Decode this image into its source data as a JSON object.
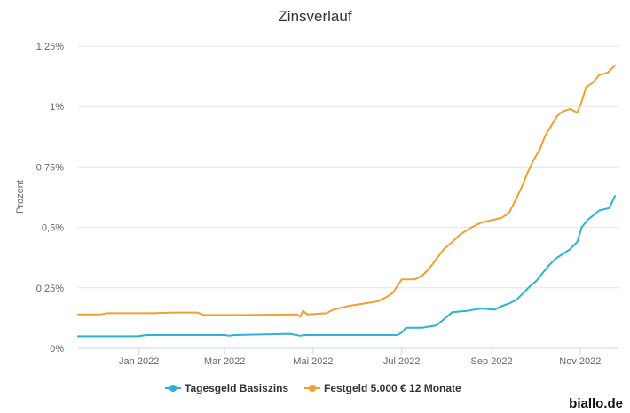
{
  "brand": "biallo.de",
  "chart_data": {
    "type": "line",
    "title": "Zinsverlauf",
    "xlabel": "",
    "ylabel": "Prozent",
    "x_ticks": [
      {
        "date": "2022-01-01",
        "label": "Jan 2022"
      },
      {
        "date": "2022-03-01",
        "label": "Mar 2022"
      },
      {
        "date": "2022-05-01",
        "label": "Mai 2022"
      },
      {
        "date": "2022-07-01",
        "label": "Jul 2022"
      },
      {
        "date": "2022-09-01",
        "label": "Sep 2022"
      },
      {
        "date": "2022-11-01",
        "label": "Nov 2022"
      }
    ],
    "xlim": [
      "2021-11-20",
      "2022-11-28"
    ],
    "y_ticks": [
      {
        "value": 0,
        "label": "0%"
      },
      {
        "value": 0.25,
        "label": "0,25%"
      },
      {
        "value": 0.5,
        "label": "0,5%"
      },
      {
        "value": 0.75,
        "label": "0,75%"
      },
      {
        "value": 1,
        "label": "1%"
      },
      {
        "value": 1.25,
        "label": "1,25%"
      }
    ],
    "ylim": [
      0,
      1.25
    ],
    "grid": true,
    "legend_position": "bottom",
    "colors": {
      "Tagesgeld Basiszins": "#2bb3d4",
      "Festgeld 5.000 € 12 Monate": "#f0a030"
    },
    "series": [
      {
        "name": "Tagesgeld Basiszins",
        "color": "#2bb3d4",
        "points": [
          [
            "2021-11-20",
            0.05
          ],
          [
            "2021-12-31",
            0.05
          ],
          [
            "2022-01-06",
            0.055
          ],
          [
            "2022-03-01",
            0.055
          ],
          [
            "2022-03-04",
            0.052
          ],
          [
            "2022-03-08",
            0.055
          ],
          [
            "2022-04-15",
            0.06
          ],
          [
            "2022-04-22",
            0.052
          ],
          [
            "2022-04-26",
            0.055
          ],
          [
            "2022-06-28",
            0.055
          ],
          [
            "2022-07-01",
            0.065
          ],
          [
            "2022-07-04",
            0.085
          ],
          [
            "2022-07-15",
            0.085
          ],
          [
            "2022-07-20",
            0.09
          ],
          [
            "2022-07-25",
            0.095
          ],
          [
            "2022-07-30",
            0.12
          ],
          [
            "2022-08-05",
            0.15
          ],
          [
            "2022-08-15",
            0.155
          ],
          [
            "2022-08-25",
            0.165
          ],
          [
            "2022-09-03",
            0.16
          ],
          [
            "2022-09-08",
            0.175
          ],
          [
            "2022-09-13",
            0.185
          ],
          [
            "2022-09-18",
            0.2
          ],
          [
            "2022-09-23",
            0.23
          ],
          [
            "2022-09-28",
            0.26
          ],
          [
            "2022-10-02",
            0.28
          ],
          [
            "2022-10-06",
            0.31
          ],
          [
            "2022-10-10",
            0.34
          ],
          [
            "2022-10-15",
            0.37
          ],
          [
            "2022-10-20",
            0.39
          ],
          [
            "2022-10-25",
            0.41
          ],
          [
            "2022-10-30",
            0.44
          ],
          [
            "2022-11-02",
            0.5
          ],
          [
            "2022-11-06",
            0.53
          ],
          [
            "2022-11-10",
            0.55
          ],
          [
            "2022-11-14",
            0.57
          ],
          [
            "2022-11-21",
            0.58
          ],
          [
            "2022-11-25",
            0.63
          ]
        ]
      },
      {
        "name": "Festgeld 5.000 € 12 Monate",
        "color": "#f0a030",
        "points": [
          [
            "2021-11-20",
            0.14
          ],
          [
            "2021-12-05",
            0.14
          ],
          [
            "2021-12-10",
            0.145
          ],
          [
            "2021-12-31",
            0.145
          ],
          [
            "2022-01-10",
            0.145
          ],
          [
            "2022-01-25",
            0.148
          ],
          [
            "2022-02-10",
            0.148
          ],
          [
            "2022-02-15",
            0.138
          ],
          [
            "2022-03-15",
            0.138
          ],
          [
            "2022-04-20",
            0.14
          ],
          [
            "2022-04-22",
            0.13
          ],
          [
            "2022-04-24",
            0.155
          ],
          [
            "2022-04-27",
            0.14
          ],
          [
            "2022-05-10",
            0.145
          ],
          [
            "2022-05-15",
            0.16
          ],
          [
            "2022-05-25",
            0.175
          ],
          [
            "2022-06-05",
            0.185
          ],
          [
            "2022-06-15",
            0.195
          ],
          [
            "2022-06-20",
            0.21
          ],
          [
            "2022-06-25",
            0.23
          ],
          [
            "2022-07-01",
            0.285
          ],
          [
            "2022-07-10",
            0.285
          ],
          [
            "2022-07-15",
            0.3
          ],
          [
            "2022-07-20",
            0.33
          ],
          [
            "2022-07-25",
            0.37
          ],
          [
            "2022-07-30",
            0.41
          ],
          [
            "2022-08-05",
            0.44
          ],
          [
            "2022-08-10",
            0.47
          ],
          [
            "2022-08-18",
            0.5
          ],
          [
            "2022-08-25",
            0.52
          ],
          [
            "2022-09-01",
            0.53
          ],
          [
            "2022-09-08",
            0.54
          ],
          [
            "2022-09-13",
            0.56
          ],
          [
            "2022-09-18",
            0.62
          ],
          [
            "2022-09-22",
            0.67
          ],
          [
            "2022-09-26",
            0.73
          ],
          [
            "2022-09-30",
            0.78
          ],
          [
            "2022-10-04",
            0.82
          ],
          [
            "2022-10-08",
            0.88
          ],
          [
            "2022-10-12",
            0.92
          ],
          [
            "2022-10-16",
            0.96
          ],
          [
            "2022-10-20",
            0.98
          ],
          [
            "2022-10-25",
            0.99
          ],
          [
            "2022-10-30",
            0.975
          ],
          [
            "2022-11-02",
            1.02
          ],
          [
            "2022-11-05",
            1.08
          ],
          [
            "2022-11-10",
            1.1
          ],
          [
            "2022-11-14",
            1.13
          ],
          [
            "2022-11-20",
            1.14
          ],
          [
            "2022-11-25",
            1.17
          ]
        ]
      }
    ]
  }
}
